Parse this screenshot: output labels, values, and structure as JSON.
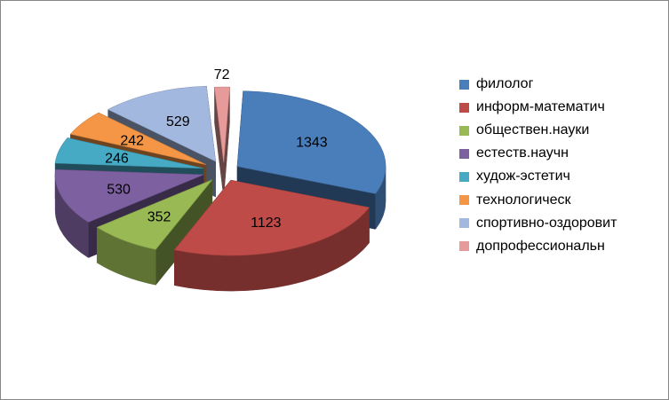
{
  "chart_data": {
    "type": "pie",
    "categories": [
      "филолог",
      "информ-математич",
      "обществен.науки",
      "естеств.научн",
      "худож-эстетич",
      "технологическ",
      "спортивно-оздоровит",
      "допрофессиональн"
    ],
    "values": [
      1343,
      1123,
      352,
      530,
      246,
      242,
      529,
      72
    ],
    "colors": [
      "#4a7ebb",
      "#be4b48",
      "#98b954",
      "#7d60a0",
      "#46aac5",
      "#f59646",
      "#a3b8df",
      "#e69a99"
    ],
    "title": "",
    "legend_position": "right",
    "style": "3d-exploded"
  }
}
